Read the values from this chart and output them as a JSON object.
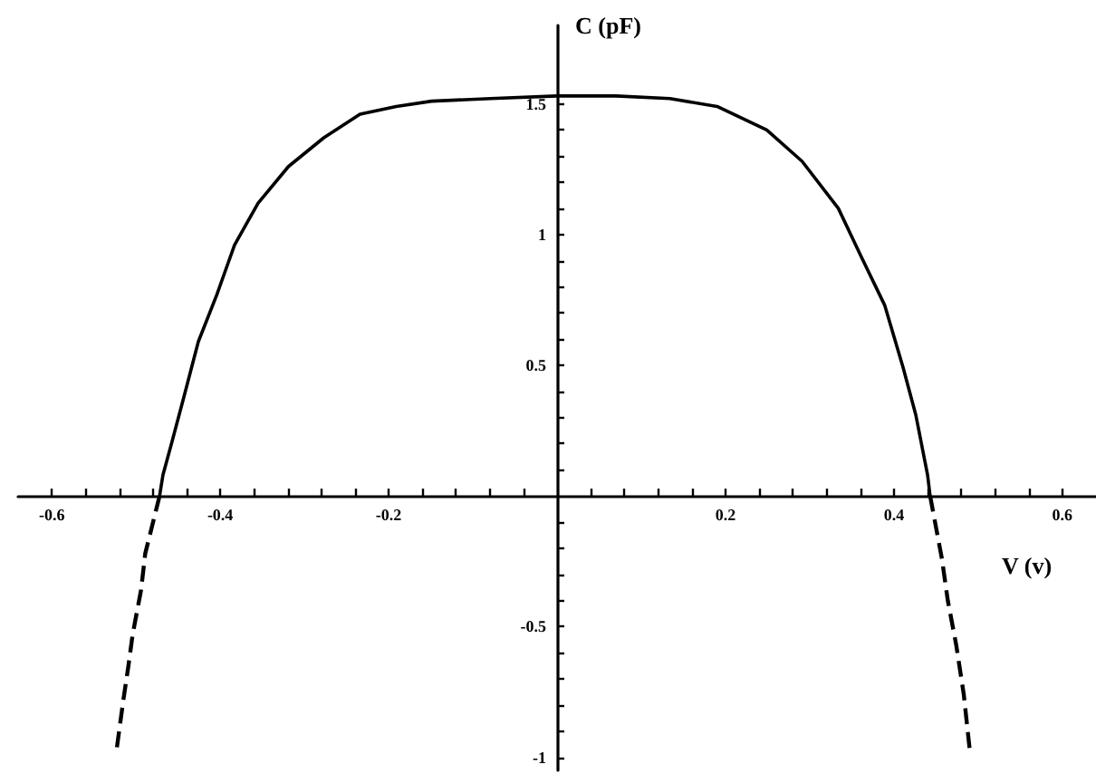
{
  "chart_data": {
    "type": "line",
    "xlabel": "V (v)",
    "ylabel": "C (pF)",
    "xlim": [
      -0.64,
      0.64
    ],
    "ylim": [
      -1.05,
      1.8
    ],
    "xticks": [
      -0.6,
      {
        "value": -0.56,
        "label": null
      },
      {
        "value": -0.52,
        "label": null
      },
      {
        "value": -0.48,
        "label": null
      },
      {
        "value": -0.44,
        "label": null
      },
      -0.4,
      {
        "value": -0.36,
        "label": null
      },
      {
        "value": -0.32,
        "label": null
      },
      {
        "value": -0.28,
        "label": null
      },
      {
        "value": -0.24,
        "label": null
      },
      -0.2,
      {
        "value": -0.16,
        "label": null
      },
      {
        "value": -0.12,
        "label": null
      },
      {
        "value": -0.08,
        "label": null
      },
      {
        "value": -0.04,
        "label": null
      },
      {
        "value": 0.04,
        "label": null
      },
      {
        "value": 0.08,
        "label": null
      },
      {
        "value": 0.12,
        "label": null
      },
      {
        "value": 0.16,
        "label": null
      },
      0.2,
      {
        "value": 0.24,
        "label": null
      },
      {
        "value": 0.28,
        "label": null
      },
      {
        "value": 0.32,
        "label": null
      },
      {
        "value": 0.36,
        "label": null
      },
      0.4,
      {
        "value": 0.44,
        "label": null
      },
      {
        "value": 0.48,
        "label": null
      },
      {
        "value": 0.52,
        "label": null
      },
      {
        "value": 0.56,
        "label": null
      },
      0.6
    ],
    "yticks": [
      -1,
      {
        "value": -0.9,
        "label": null
      },
      {
        "value": -0.8,
        "label": null
      },
      {
        "value": -0.7,
        "label": null
      },
      {
        "value": -0.6,
        "label": null
      },
      -0.5,
      {
        "value": -0.4,
        "label": null
      },
      {
        "value": -0.3,
        "label": null
      },
      {
        "value": -0.2,
        "label": null
      },
      {
        "value": -0.1,
        "label": null
      },
      {
        "value": 0.1,
        "label": null
      },
      {
        "value": 0.2,
        "label": null
      },
      {
        "value": 0.3,
        "label": null
      },
      {
        "value": 0.4,
        "label": null
      },
      0.5,
      {
        "value": 0.6,
        "label": null
      },
      {
        "value": 0.7,
        "label": null
      },
      {
        "value": 0.8,
        "label": null
      },
      {
        "value": 0.9,
        "label": null
      },
      1,
      {
        "value": 1.1,
        "label": null
      },
      {
        "value": 1.2,
        "label": null
      },
      {
        "value": 1.3,
        "label": null
      },
      {
        "value": 1.4,
        "label": null
      },
      1.5
    ],
    "marker": "none",
    "series": [
      {
        "color": "#000000",
        "line_style": "solid",
        "x": [
          -0.472,
          -0.468,
          -0.457,
          -0.443,
          -0.426,
          -0.404,
          -0.383,
          -0.355,
          -0.319,
          -0.277,
          -0.234,
          -0.191,
          -0.149,
          -0.079,
          0,
          0.07,
          0.134,
          0.19,
          0.249,
          0.291,
          0.334,
          0.362,
          0.389,
          0.411,
          0.426,
          0.44,
          0.443
        ],
        "values": [
          0,
          0.08,
          0.21,
          0.38,
          0.59,
          0.77,
          0.96,
          1.12,
          1.26,
          1.37,
          1.46,
          1.49,
          1.51,
          1.52,
          1.53,
          1.53,
          1.52,
          1.49,
          1.4,
          1.28,
          1.1,
          0.91,
          0.73,
          0.49,
          0.31,
          0.08,
          0
        ]
      },
      {
        "color": "#000000",
        "line_style": "dashed",
        "x": [
          -0.472,
          -0.489,
          -0.494,
          -0.504,
          -0.509,
          -0.515,
          -0.523,
          0,
          0.443,
          0.457,
          0.464,
          0.474,
          0.483,
          0.49
        ],
        "values": [
          0,
          -0.22,
          -0.36,
          -0.53,
          -0.65,
          -0.78,
          -0.97,
          null,
          0,
          -0.24,
          -0.4,
          -0.57,
          -0.76,
          -0.97
        ]
      }
    ]
  }
}
